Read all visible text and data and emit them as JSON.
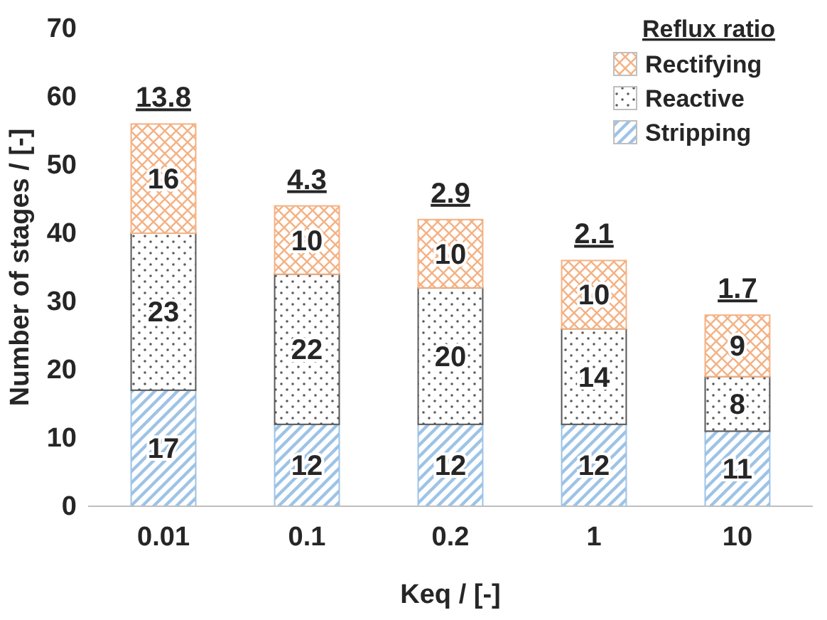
{
  "chart_data": {
    "type": "bar",
    "stacked": true,
    "xlabel": "Keq / [-]",
    "ylabel": "Number of stages / [-]",
    "legend_title": "Reflux ratio",
    "legend": "top right",
    "data_labels": true,
    "categories": [
      "0.01",
      "0.1",
      "0.2",
      "1",
      "10"
    ],
    "series": [
      {
        "name": "Stripping",
        "color": "#9dc3e6",
        "values": [
          17,
          12,
          12,
          12,
          11
        ]
      },
      {
        "name": "Reactive",
        "color": "#595959",
        "values": [
          23,
          22,
          20,
          14,
          8
        ]
      },
      {
        "name": "Rectifying",
        "color": "#f4b183",
        "values": [
          16,
          10,
          10,
          10,
          9
        ]
      }
    ],
    "ylim": [
      0,
      70
    ],
    "yticks": [
      0,
      10,
      20,
      30,
      40,
      50,
      60,
      70
    ],
    "annotations": [
      {
        "text": "13.8",
        "x": "0.01",
        "y": 56
      },
      {
        "text": "4.3",
        "x": "0.1",
        "y": 44
      },
      {
        "text": "2.9",
        "x": "0.2",
        "y": 42
      },
      {
        "text": "2.1",
        "x": "1",
        "y": 36
      },
      {
        "text": "1.7",
        "x": "10",
        "y": 28
      }
    ]
  }
}
